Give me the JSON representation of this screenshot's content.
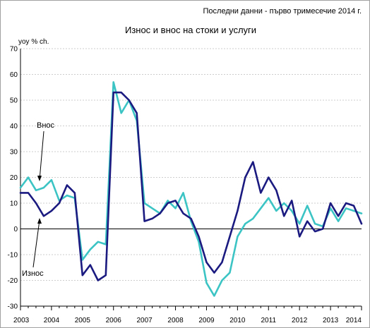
{
  "header": {
    "note": "Последни данни - първо тримесечие 2014 г.",
    "title": "Износ и внос на стоки и услуги",
    "ylabel": "yoy % ch."
  },
  "annotations": {
    "imports": "Внос",
    "exports": "Износ"
  },
  "colors": {
    "exports": "#1a1a80",
    "imports": "#3cc4c4"
  },
  "chart_data": {
    "type": "line",
    "title": "Износ и внос на стоки и услуги",
    "ylabel": "yoy % ch.",
    "xlabel": "",
    "ylim": [
      -30,
      70
    ],
    "yticks": [
      -30,
      -20,
      -10,
      0,
      10,
      20,
      30,
      40,
      50,
      60,
      70
    ],
    "x_tick_labels": [
      "2003",
      "2004",
      "2005",
      "2006",
      "2007",
      "2008",
      "2009",
      "2010",
      "2011",
      "2012",
      "2013",
      "2014"
    ],
    "x_unit": "quarter",
    "x_range": [
      2003.0,
      2014.0
    ],
    "grid": true,
    "series": [
      {
        "name": "Износ",
        "points": [
          [
            2003.0,
            14
          ],
          [
            2003.25,
            14
          ],
          [
            2003.5,
            10
          ],
          [
            2003.75,
            5
          ],
          [
            2004.0,
            7
          ],
          [
            2004.25,
            10
          ],
          [
            2004.5,
            17
          ],
          [
            2004.75,
            14
          ],
          [
            2005.0,
            -18
          ],
          [
            2005.25,
            -14
          ],
          [
            2005.5,
            -20
          ],
          [
            2005.75,
            -18
          ],
          [
            2006.0,
            53
          ],
          [
            2006.25,
            53
          ],
          [
            2006.5,
            50
          ],
          [
            2006.75,
            45
          ],
          [
            2007.0,
            3
          ],
          [
            2007.25,
            4
          ],
          [
            2007.5,
            6
          ],
          [
            2007.75,
            10
          ],
          [
            2008.0,
            11
          ],
          [
            2008.25,
            6
          ],
          [
            2008.5,
            4
          ],
          [
            2008.75,
            -3
          ],
          [
            2009.0,
            -13
          ],
          [
            2009.25,
            -17
          ],
          [
            2009.5,
            -13
          ],
          [
            2009.75,
            -3
          ],
          [
            2010.0,
            7
          ],
          [
            2010.25,
            20
          ],
          [
            2010.5,
            26
          ],
          [
            2010.75,
            14
          ],
          [
            2011.0,
            20
          ],
          [
            2011.25,
            15
          ],
          [
            2011.5,
            5
          ],
          [
            2011.75,
            11
          ],
          [
            2012.0,
            -3
          ],
          [
            2012.25,
            3
          ],
          [
            2012.5,
            -1
          ],
          [
            2012.75,
            0
          ],
          [
            2013.0,
            10
          ],
          [
            2013.25,
            5
          ],
          [
            2013.5,
            10
          ],
          [
            2013.75,
            9
          ],
          [
            2014.0,
            2
          ]
        ]
      },
      {
        "name": "Внос",
        "points": [
          [
            2003.0,
            16
          ],
          [
            2003.25,
            20
          ],
          [
            2003.5,
            15
          ],
          [
            2003.75,
            16
          ],
          [
            2004.0,
            19
          ],
          [
            2004.25,
            11
          ],
          [
            2004.5,
            13
          ],
          [
            2004.75,
            12
          ],
          [
            2005.0,
            -12
          ],
          [
            2005.25,
            -8
          ],
          [
            2005.5,
            -5
          ],
          [
            2005.75,
            -6
          ],
          [
            2006.0,
            57
          ],
          [
            2006.25,
            45
          ],
          [
            2006.5,
            50
          ],
          [
            2006.75,
            42
          ],
          [
            2007.0,
            10
          ],
          [
            2007.25,
            8
          ],
          [
            2007.5,
            6
          ],
          [
            2007.75,
            11
          ],
          [
            2008.0,
            8
          ],
          [
            2008.25,
            14
          ],
          [
            2008.5,
            3
          ],
          [
            2008.75,
            -5
          ],
          [
            2009.0,
            -21
          ],
          [
            2009.25,
            -26
          ],
          [
            2009.5,
            -20
          ],
          [
            2009.75,
            -17
          ],
          [
            2010.0,
            -3
          ],
          [
            2010.25,
            2
          ],
          [
            2010.5,
            4
          ],
          [
            2010.75,
            8
          ],
          [
            2011.0,
            12
          ],
          [
            2011.25,
            7
          ],
          [
            2011.5,
            10
          ],
          [
            2011.75,
            7
          ],
          [
            2012.0,
            2
          ],
          [
            2012.25,
            9
          ],
          [
            2012.5,
            2
          ],
          [
            2012.75,
            1
          ],
          [
            2013.0,
            8
          ],
          [
            2013.25,
            3
          ],
          [
            2013.5,
            8
          ],
          [
            2013.75,
            7
          ],
          [
            2014.0,
            6
          ]
        ]
      }
    ]
  }
}
